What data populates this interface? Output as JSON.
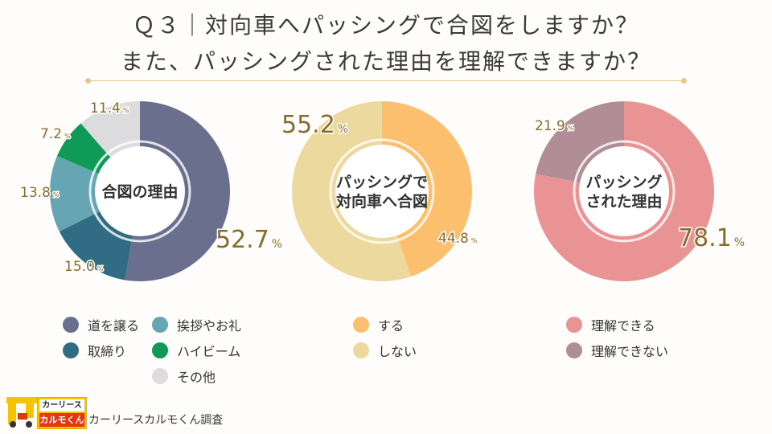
{
  "title": {
    "line1": "Ｑ３｜対向車へパッシングで合図をしますか？",
    "line2": "また、パッシングされた理由を理解できますか？"
  },
  "chart_data": [
    {
      "type": "pie",
      "center_label": [
        "合図の理由"
      ],
      "categories": [
        "道を譲る",
        "取締り",
        "挨拶やお礼",
        "ハイビーム",
        "その他"
      ],
      "values": [
        52.7,
        15.0,
        13.8,
        7.2,
        11.4
      ],
      "colors": [
        "#6b6f8e",
        "#306d84",
        "#66a5b2",
        "#0f9a57",
        "#dcdcde"
      ],
      "value_labels": [
        "52.7",
        "15.0",
        "13.8",
        "7.2",
        "11.4"
      ]
    },
    {
      "type": "pie",
      "center_label": [
        "パッシングで",
        "対向車へ合図"
      ],
      "categories": [
        "する",
        "しない"
      ],
      "values": [
        44.8,
        55.2
      ],
      "colors": [
        "#fbbf6e",
        "#ebd99d"
      ],
      "value_labels": [
        "44.8",
        "55.2"
      ]
    },
    {
      "type": "pie",
      "center_label": [
        "パッシング",
        "された理由"
      ],
      "categories": [
        "理解できる",
        "理解できない"
      ],
      "values": [
        78.1,
        21.9
      ],
      "colors": [
        "#ea9394",
        "#b18e97"
      ],
      "value_labels": [
        "78.1",
        "21.9"
      ]
    }
  ],
  "label_color": "#8a6a2a",
  "percent_sign": "%",
  "brand": {
    "top": "カーリース",
    "bottom": "カルモくん"
  },
  "footer": "カーリースカルモくん調査"
}
